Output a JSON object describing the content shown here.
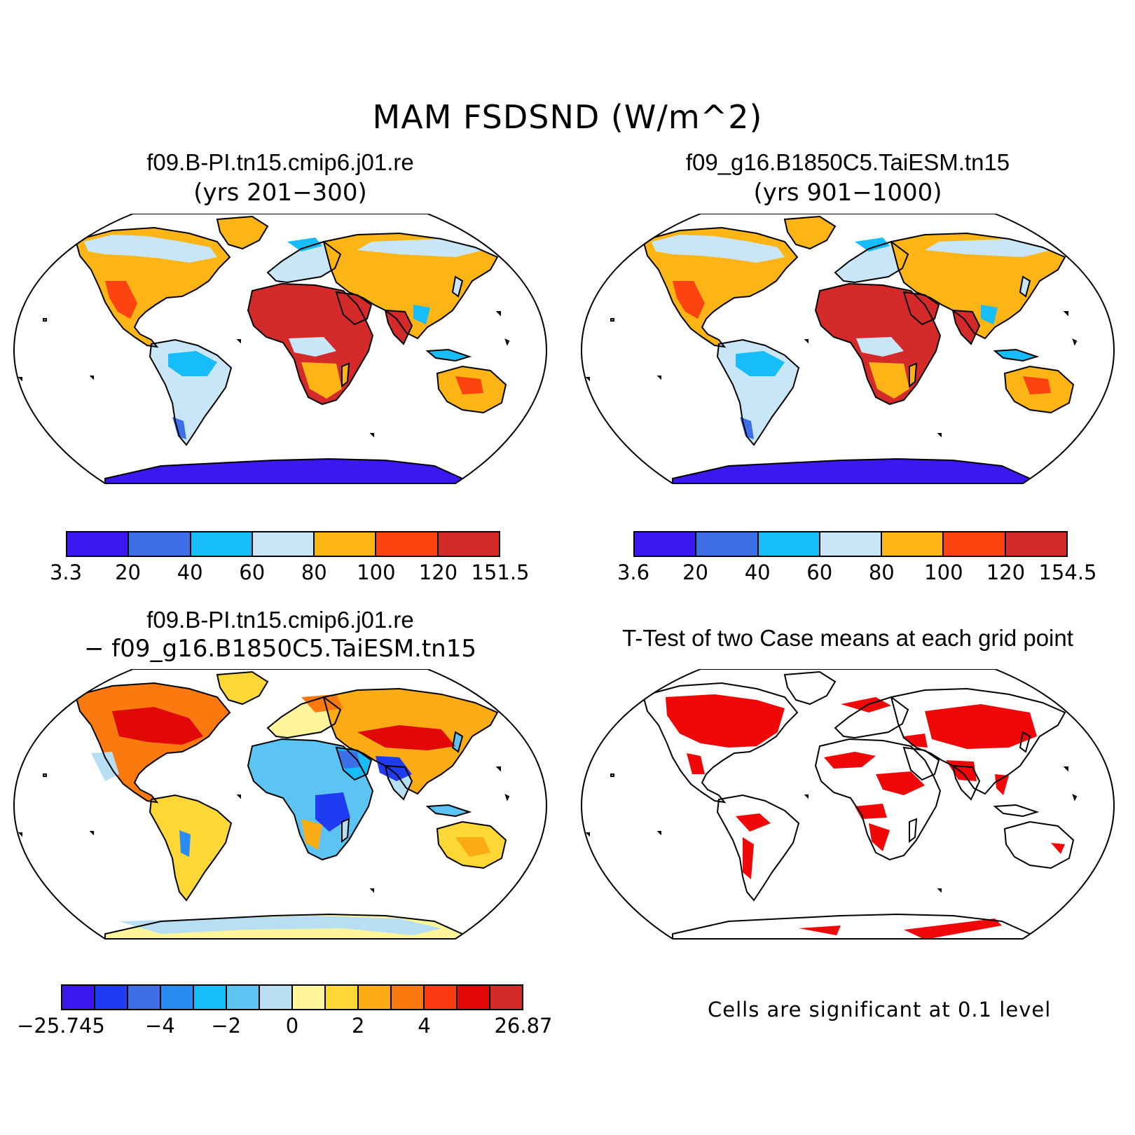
{
  "title": "MAM FSDSND (W/m^2)",
  "panels": [
    {
      "title": "f09.B-PI.tn15.cmip6.j01.re",
      "subtitle": "(yrs 201−300)",
      "colorbar": {
        "colors": [
          "#3b17f0",
          "#3d6fe8",
          "#16bdf8",
          "#c8e6f7",
          "#fcb514",
          "#fd4410",
          "#d42a2a"
        ],
        "labels": [
          "3.3",
          "20",
          "40",
          "60",
          "80",
          "100",
          "120",
          "151.5"
        ]
      }
    },
    {
      "title": "f09_g16.B1850C5.TaiESM.tn15",
      "subtitle": "(yrs 901−1000)",
      "colorbar": {
        "colors": [
          "#3b17f0",
          "#3d6fe8",
          "#16bdf8",
          "#c8e6f7",
          "#fcb514",
          "#fd4410",
          "#d42a2a"
        ],
        "labels": [
          "3.6",
          "20",
          "40",
          "60",
          "80",
          "100",
          "120",
          "154.5"
        ]
      }
    },
    {
      "title": "f09.B-PI.tn15.cmip6.j01.re",
      "subtitle": "− f09_g16.B1850C5.TaiESM.tn15",
      "colorbar": {
        "colors": [
          "#3b17f0",
          "#1f3cf2",
          "#3d6fe8",
          "#2a8bf5",
          "#16bdf8",
          "#5cc4f2",
          "#b7def3",
          "#fff59a",
          "#fdd735",
          "#fbab14",
          "#fa7a10",
          "#fa3a10",
          "#e20808",
          "#d42a2a"
        ],
        "labels": [
          "−25.745",
          "−4",
          "−2",
          "0",
          "2",
          "4",
          "26.87"
        ]
      }
    },
    {
      "title": "T-Test of two Case means at each grid point",
      "note": "Cells are significant at 0.1 level"
    }
  ]
}
